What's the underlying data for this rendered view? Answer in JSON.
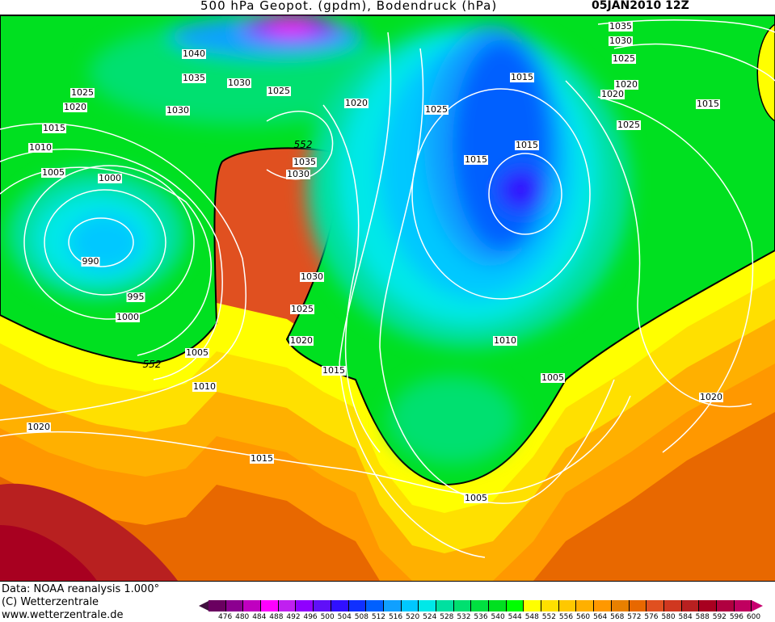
{
  "header": {
    "title": "500 hPa Geopot. (gpdm), Bodendruck (hPa)",
    "date": "05JAN2010 12Z"
  },
  "map": {
    "isobar_labels": [
      "1040",
      "1035",
      "1030",
      "1025",
      "1020",
      "1025",
      "1020",
      "1015",
      "1010",
      "1005",
      "1000",
      "990",
      "995",
      "1000",
      "1030",
      "1035",
      "1030",
      "1030",
      "1025",
      "1020",
      "1015",
      "1005",
      "1010",
      "1020",
      "1015",
      "1005",
      "1025",
      "1015",
      "1015",
      "1015",
      "1010",
      "1005",
      "1020",
      "1035",
      "1030",
      "1025",
      "1020",
      "1020",
      "1015",
      "1025"
    ],
    "geopotential_labels": [
      "552",
      "552"
    ],
    "colors": {
      "green": "#10e020",
      "yellow": "#ffff00",
      "blue": "#0a50ff",
      "cyan": "#00c8ff",
      "dark_red": "#a8102a"
    }
  },
  "footer": {
    "source": "Data: NOAA reanalysis 1.000°",
    "copyright": "(C) Wetterzentrale",
    "url": "www.wetterzentrale.de"
  },
  "legend": {
    "ticks": [
      "476",
      "480",
      "484",
      "488",
      "492",
      "496",
      "500",
      "504",
      "508",
      "512",
      "516",
      "520",
      "524",
      "528",
      "532",
      "536",
      "540",
      "544",
      "548",
      "552",
      "556",
      "560",
      "564",
      "568",
      "572",
      "576",
      "580",
      "584",
      "588",
      "592",
      "596",
      "600"
    ],
    "colors": [
      "#6a0060",
      "#8c0090",
      "#c000c0",
      "#ff00ff",
      "#c020f0",
      "#9000ff",
      "#6010f8",
      "#3010ff",
      "#1030ff",
      "#0060ff",
      "#10a0ff",
      "#00c8ff",
      "#00e8e8",
      "#00e0a0",
      "#00e070",
      "#00e040",
      "#00e020",
      "#00ff00",
      "#ffff00",
      "#ffe000",
      "#ffc800",
      "#ffb000",
      "#ff9800",
      "#e88000",
      "#e86800",
      "#e05020",
      "#d03820",
      "#b82020",
      "#a80020",
      "#b00040",
      "#c00060"
    ],
    "low_color": "#40103f",
    "high_color": "#c80070"
  }
}
